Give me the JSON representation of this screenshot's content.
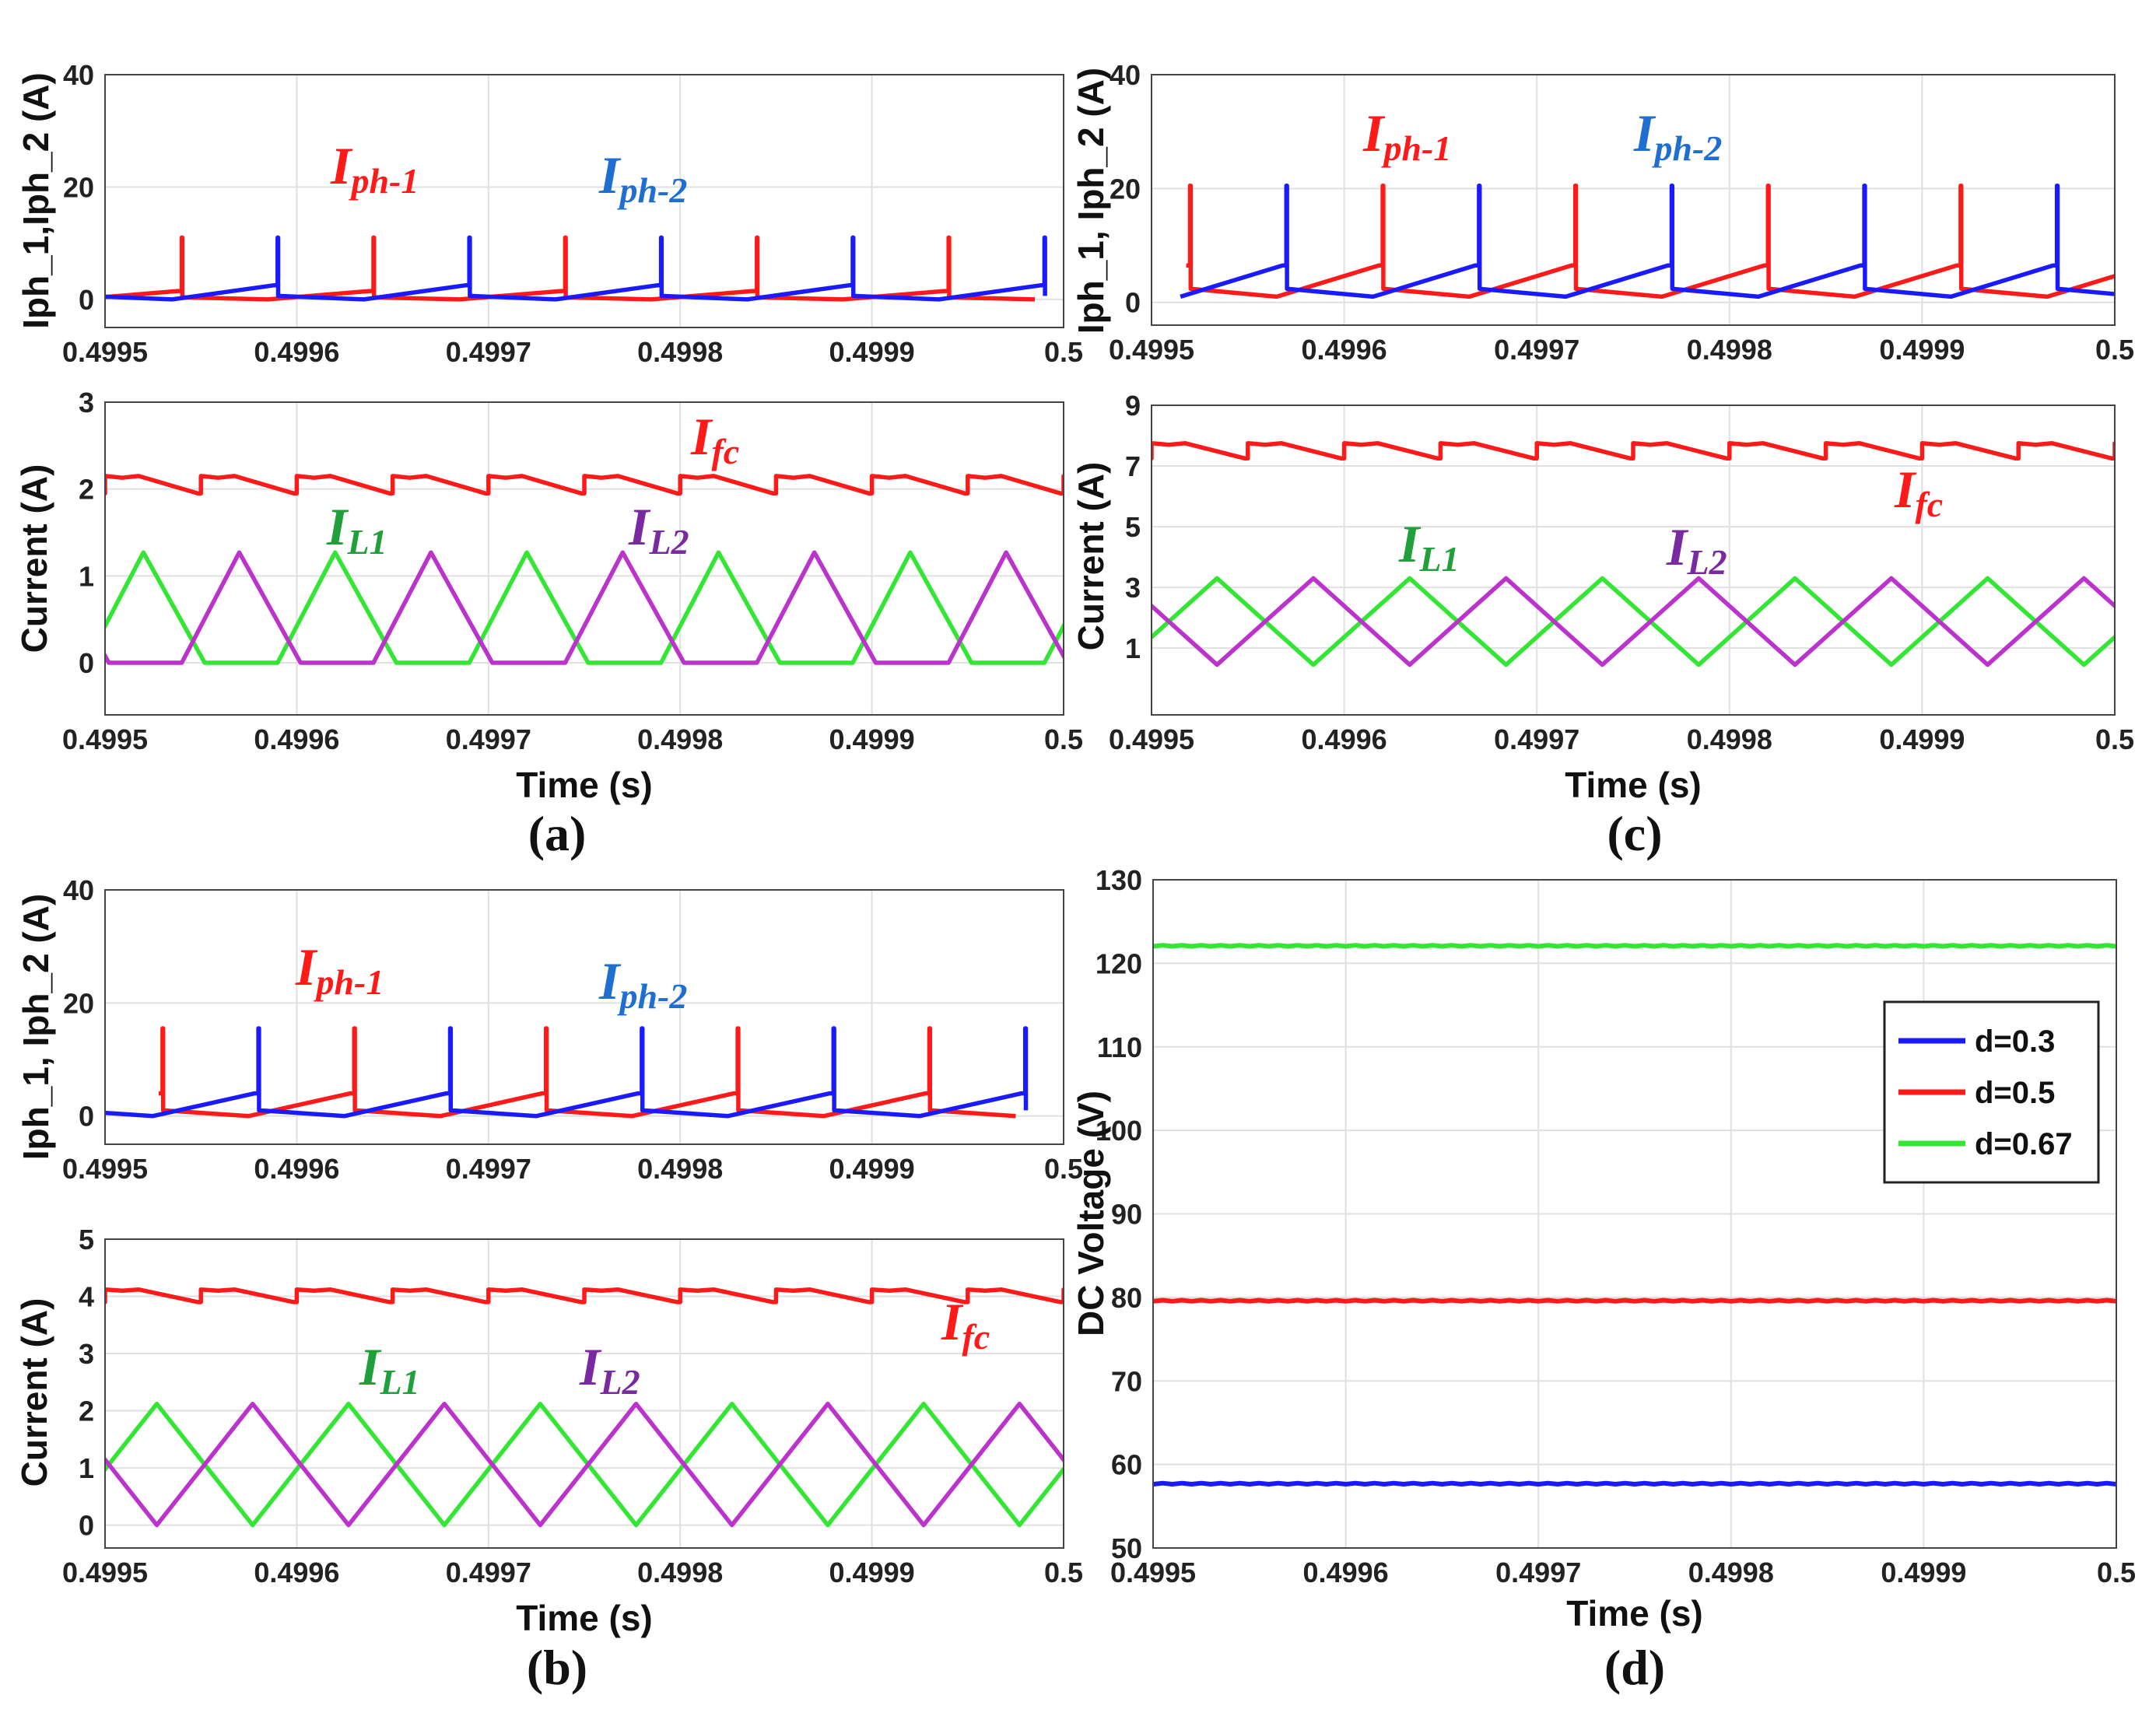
{
  "colors": {
    "phase1": "#ff1a1a",
    "phase2": "#1a1aff",
    "fc": "#ff1a1a",
    "L1": "#33e633",
    "L2": "#bb33cc",
    "blue_text": "#1f6fd0",
    "green_text": "#1fa03a",
    "purple_text": "#7a2aa0",
    "grid": "#e0e0e0",
    "axis": "#444444"
  },
  "labels": {
    "time_axis": "Time (s)",
    "current_axis": "Current (A)",
    "iph_axis_a": "Iph_1,Iph_2 (A)",
    "iph_axis_b": "Iph_1, Iph_2 (A)",
    "iph_axis_c": "Iph_1, Iph_2 (A)",
    "dc_axis": "DC Voltage (V)",
    "panel_a": "(a)",
    "panel_b": "(b)",
    "panel_c": "(c)",
    "panel_d": "(d)",
    "I": "I",
    "sub_ph1": "ph-1",
    "sub_ph2": "ph-2",
    "sub_fc": "fc",
    "sub_L1": "L1",
    "sub_L2": "L2"
  },
  "chart_data": [
    {
      "panel": "a-top",
      "type": "line",
      "title": "",
      "xlabel": "",
      "ylabel": "Iph_1,Iph_2 (A)",
      "xlim": [
        0.4995,
        0.5
      ],
      "ylim": [
        -5,
        40
      ],
      "x_ticks": [
        "0.4995",
        "0.4996",
        "0.4997",
        "0.4998",
        "0.4999",
        "0.5"
      ],
      "y_ticks": [
        "0",
        "20",
        "40"
      ],
      "series": [
        {
          "name": "Iph-1",
          "color": "red",
          "shape": "ramp_spike",
          "period_s": 0.0001,
          "first_spike_s": 0.49954,
          "base_min": 0,
          "base_max": 1.5,
          "spike_peak": 11
        },
        {
          "name": "Iph-2",
          "color": "blue",
          "shape": "ramp_spike",
          "period_s": 0.0001,
          "first_spike_s": 0.49959,
          "base_min": 0,
          "base_max": 2.5,
          "spike_peak": 11
        }
      ]
    },
    {
      "panel": "a-bottom",
      "type": "line",
      "title": "",
      "xlabel": "Time (s)",
      "ylabel": "Current (A)",
      "xlim": [
        0.4995,
        0.5
      ],
      "ylim": [
        -0.6,
        3
      ],
      "x_ticks": [
        "0.4995",
        "0.4996",
        "0.4997",
        "0.4998",
        "0.4999",
        "0.5"
      ],
      "y_ticks": [
        "0",
        "1",
        "2",
        "3"
      ],
      "series": [
        {
          "name": "Ifc",
          "color": "red",
          "shape": "sawtooth",
          "period_s": 5e-05,
          "low": 1.95,
          "high": 2.15
        },
        {
          "name": "IL1",
          "color": "green",
          "shape": "dcm_triangle",
          "period_s": 0.0001,
          "peak": 1.27,
          "peak_time_s": 0.49952,
          "rise_s": 3e-05,
          "fall_s": 3.2e-05
        },
        {
          "name": "IL2",
          "color": "purple",
          "shape": "dcm_triangle",
          "period_s": 0.0001,
          "peak": 1.27,
          "peak_time_s": 0.49957,
          "rise_s": 3e-05,
          "fall_s": 3.2e-05
        }
      ]
    },
    {
      "panel": "b-top",
      "type": "line",
      "title": "",
      "xlabel": "",
      "ylabel": "Iph_1, Iph_2 (A)",
      "xlim": [
        0.4995,
        0.5
      ],
      "ylim": [
        -5,
        40
      ],
      "x_ticks": [
        "0.4995",
        "0.4996",
        "0.4997",
        "0.4998",
        "0.4999",
        "0.5"
      ],
      "y_ticks": [
        "0",
        "20",
        "40"
      ],
      "series": [
        {
          "name": "Iph-1",
          "color": "red",
          "shape": "ramp_spike",
          "period_s": 0.0001,
          "first_spike_s": 0.49953,
          "base_min": 0,
          "base_max": 4,
          "spike_peak": 15.5
        },
        {
          "name": "Iph-2",
          "color": "blue",
          "shape": "ramp_spike",
          "period_s": 0.0001,
          "first_spike_s": 0.49958,
          "base_min": 0,
          "base_max": 4,
          "spike_peak": 15.5
        }
      ]
    },
    {
      "panel": "b-bottom",
      "type": "line",
      "title": "",
      "xlabel": "Time (s)",
      "ylabel": "Current (A)",
      "xlim": [
        0.4995,
        0.5
      ],
      "ylim": [
        -0.4,
        5
      ],
      "x_ticks": [
        "0.4995",
        "0.4996",
        "0.4997",
        "0.4998",
        "0.4999",
        "0.5"
      ],
      "y_ticks": [
        "0",
        "1",
        "2",
        "3",
        "4",
        "5"
      ],
      "series": [
        {
          "name": "Ifc",
          "color": "red",
          "shape": "sawtooth",
          "period_s": 5e-05,
          "low": 3.9,
          "high": 4.12
        },
        {
          "name": "IL1",
          "color": "green",
          "shape": "triangle",
          "period_s": 0.0001,
          "low": 0,
          "high": 2.12,
          "peak_time_s": 0.499527
        },
        {
          "name": "IL2",
          "color": "purple",
          "shape": "triangle",
          "period_s": 0.0001,
          "low": 0,
          "high": 2.12,
          "peak_time_s": 0.499577
        }
      ]
    },
    {
      "panel": "c-top",
      "type": "line",
      "title": "",
      "xlabel": "",
      "ylabel": "Iph_1, Iph_2 (A)",
      "xlim": [
        0.4995,
        0.5
      ],
      "ylim": [
        -4,
        40
      ],
      "x_ticks": [
        "0.4995",
        "0.4996",
        "0.4997",
        "0.4998",
        "0.4999",
        "0.5"
      ],
      "y_ticks": [
        "0",
        "20",
        "40"
      ],
      "series": [
        {
          "name": "Iph-1",
          "color": "red",
          "shape": "ramp_spike",
          "period_s": 0.0001,
          "first_spike_s": 0.49952,
          "base_min": 1,
          "base_max": 6.5,
          "spike_peak": 20.5
        },
        {
          "name": "Iph-2",
          "color": "blue",
          "shape": "ramp_spike",
          "period_s": 0.0001,
          "first_spike_s": 0.49957,
          "base_min": 1,
          "base_max": 6.5,
          "spike_peak": 20.5
        }
      ]
    },
    {
      "panel": "c-bottom",
      "type": "line",
      "title": "",
      "xlabel": "Time (s)",
      "ylabel": "Current (A)",
      "xlim": [
        0.4995,
        0.5
      ],
      "ylim": [
        -1.2,
        9
      ],
      "x_ticks": [
        "0.4995",
        "0.4996",
        "0.4997",
        "0.4998",
        "0.4999",
        "0.5"
      ],
      "y_ticks": [
        "1",
        "3",
        "5",
        "7",
        "9"
      ],
      "series": [
        {
          "name": "Ifc",
          "color": "red",
          "shape": "sawtooth",
          "period_s": 5e-05,
          "low": 7.25,
          "high": 7.75
        },
        {
          "name": "IL1",
          "color": "green",
          "shape": "triangle",
          "period_s": 0.0001,
          "low": 0.45,
          "high": 3.3,
          "peak_time_s": 0.499534
        },
        {
          "name": "IL2",
          "color": "purple",
          "shape": "triangle",
          "period_s": 0.0001,
          "low": 0.45,
          "high": 3.3,
          "peak_time_s": 0.499584
        }
      ]
    },
    {
      "panel": "d",
      "type": "line",
      "title": "",
      "xlabel": "Time (s)",
      "ylabel": "DC Voltage (V)",
      "xlim": [
        0.4995,
        0.5
      ],
      "ylim": [
        50,
        130
      ],
      "x_ticks": [
        "0.4995",
        "0.4996",
        "0.4997",
        "0.4998",
        "0.4999",
        "0.5"
      ],
      "y_ticks": [
        "50",
        "60",
        "70",
        "80",
        "90",
        "100",
        "110",
        "120",
        "130"
      ],
      "legend": [
        "d=0.3",
        "d=0.5",
        "d=0.67"
      ],
      "legend_position": "right",
      "series": [
        {
          "name": "d=0.3",
          "color": "blue",
          "shape": "constant",
          "value": 57.7
        },
        {
          "name": "d=0.5",
          "color": "red",
          "shape": "constant",
          "value": 79.6
        },
        {
          "name": "d=0.67",
          "color": "green",
          "shape": "constant",
          "value": 122.1
        }
      ]
    }
  ]
}
